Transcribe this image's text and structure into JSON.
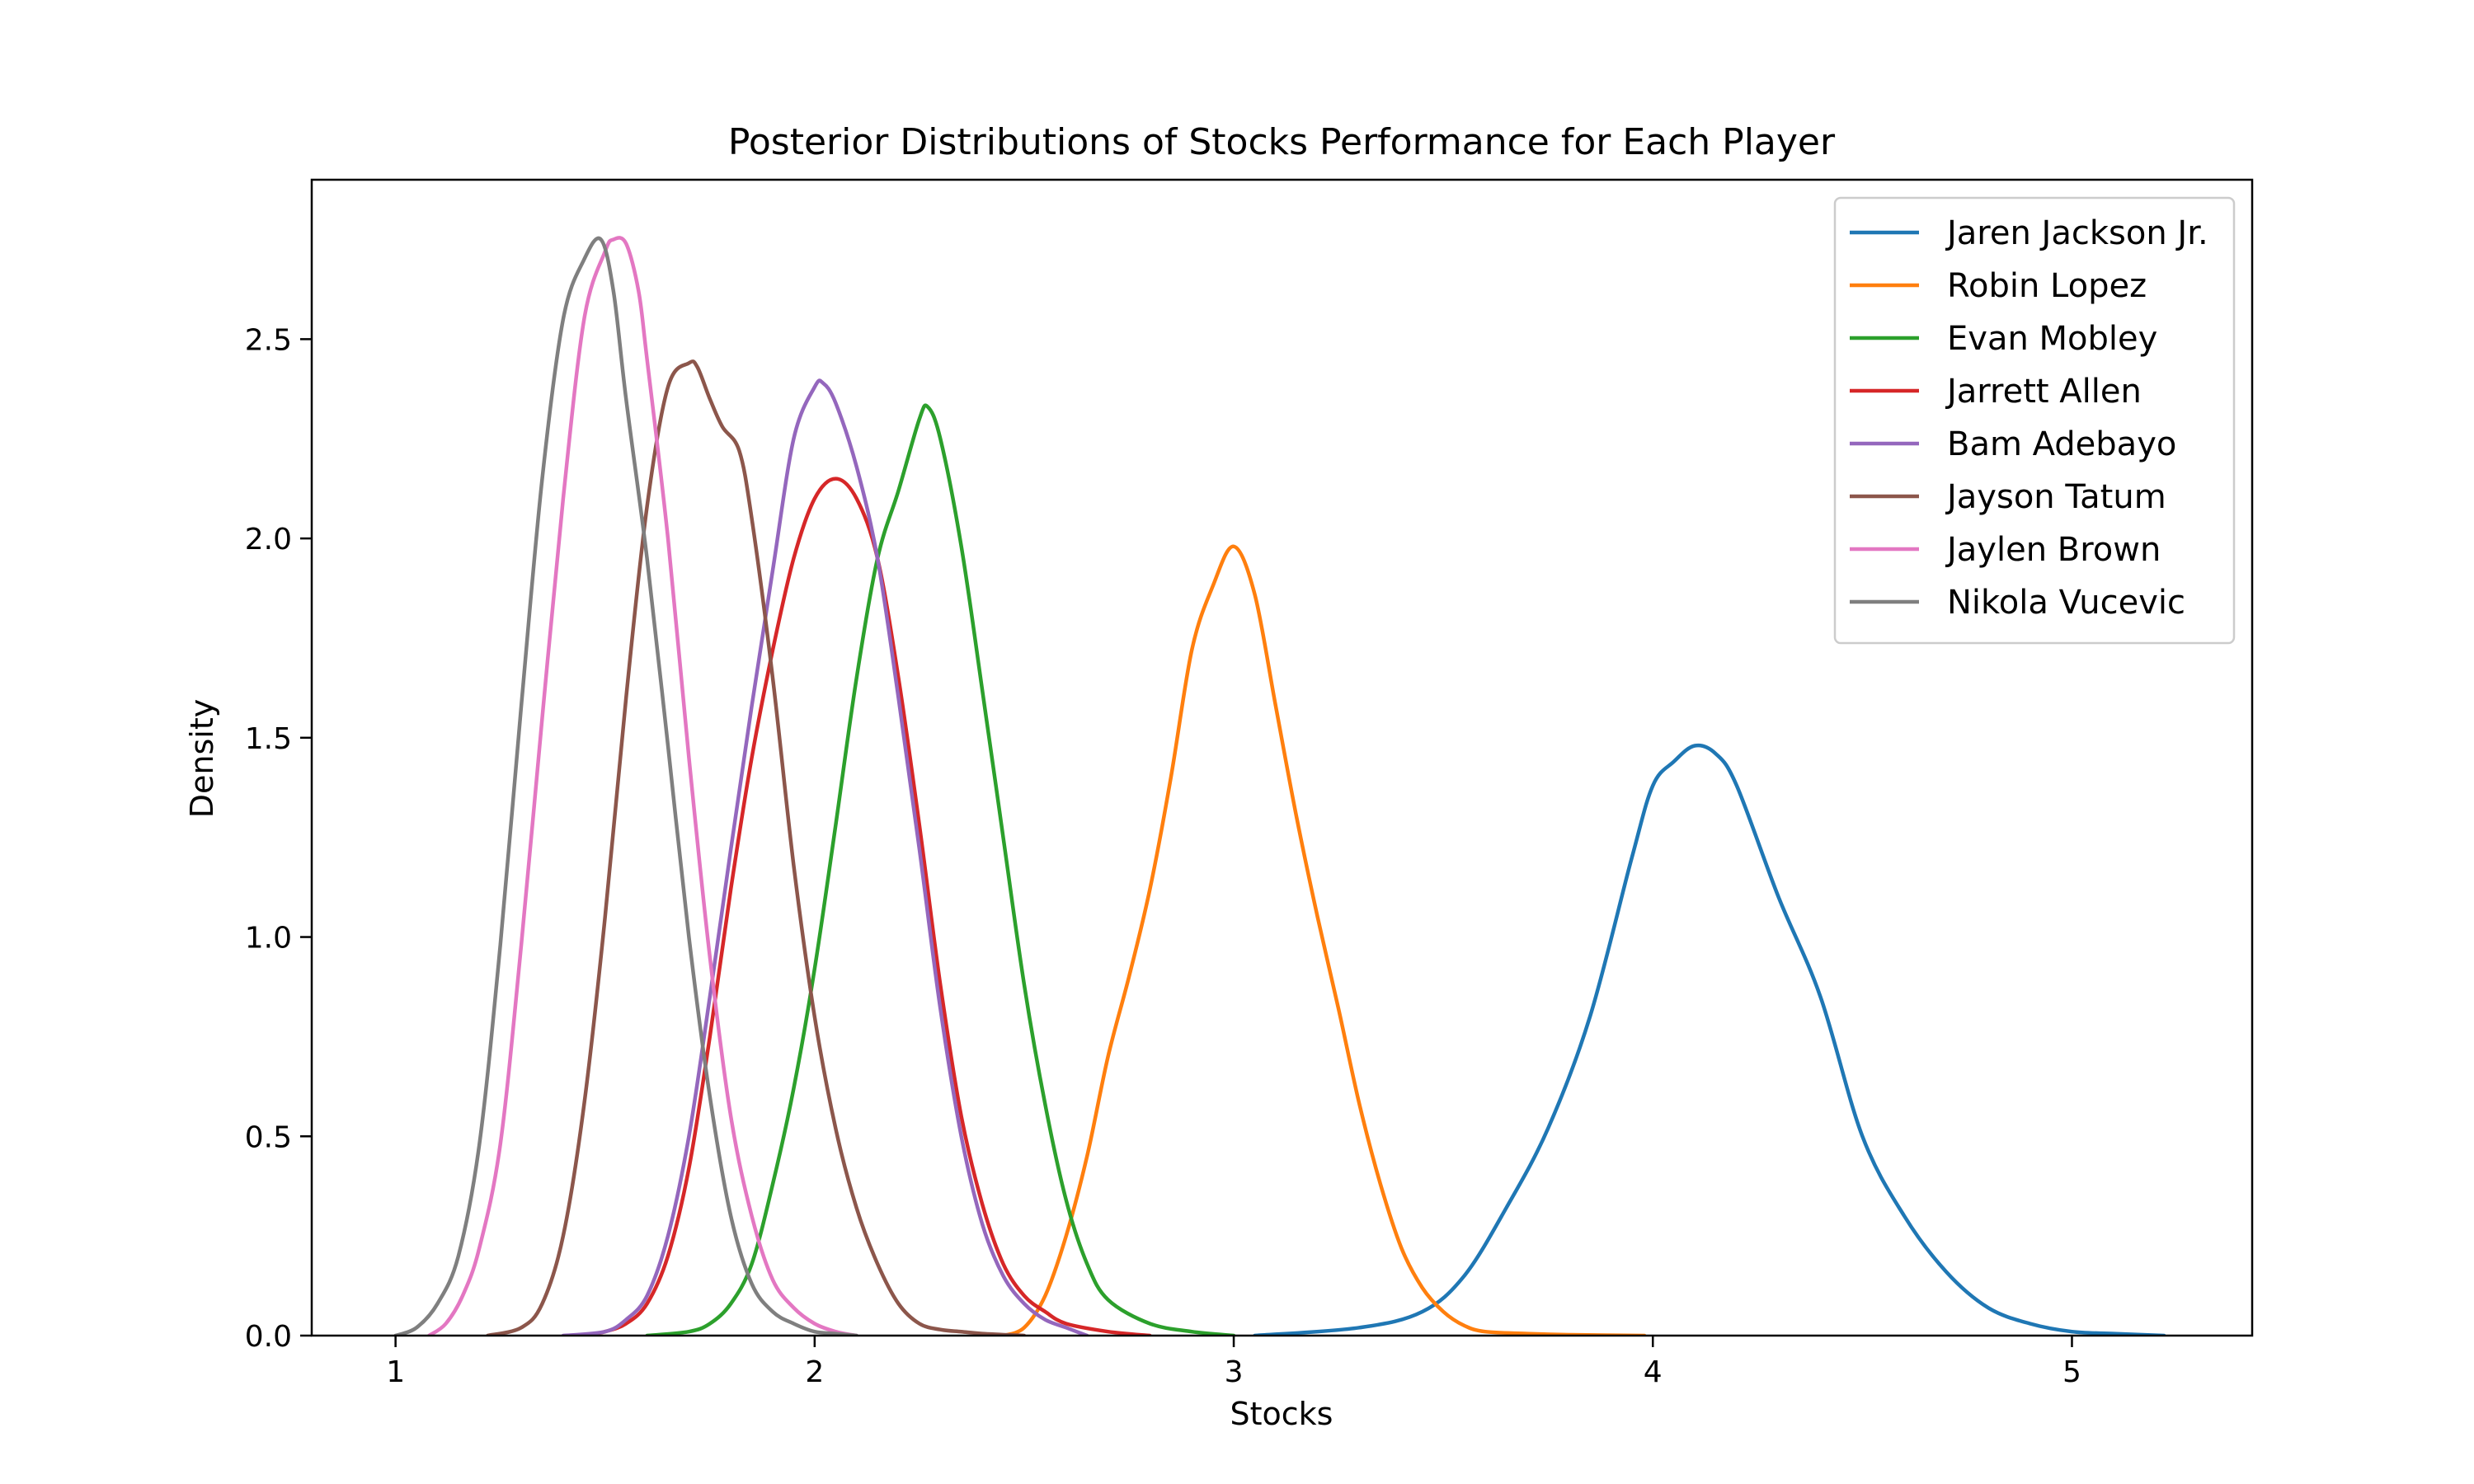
{
  "chart_data": {
    "type": "line",
    "title": "Posterior Distributions of Stocks Performance for Each Player",
    "xlabel": "Stocks",
    "ylabel": "Density",
    "xlim": [
      0.8,
      5.43
    ],
    "ylim": [
      0,
      2.9
    ],
    "xticks": [
      1,
      2,
      3,
      4,
      5
    ],
    "yticks": [
      0.0,
      0.5,
      1.0,
      1.5,
      2.0,
      2.5
    ],
    "xtick_labels": [
      "1",
      "2",
      "3",
      "4",
      "5"
    ],
    "ytick_labels": [
      "0.0",
      "0.5",
      "1.0",
      "1.5",
      "2.0",
      "2.5"
    ],
    "grid": false,
    "legend_position": "top-right",
    "series": [
      {
        "name": "Jaren Jackson Jr.",
        "color": "#1f77b4",
        "x": [
          3.05,
          3.3,
          3.45,
          3.55,
          3.65,
          3.75,
          3.85,
          3.95,
          4.0,
          4.05,
          4.1,
          4.15,
          4.2,
          4.3,
          4.4,
          4.5,
          4.6,
          4.7,
          4.8,
          4.9,
          5.0,
          5.1,
          5.22
        ],
        "y": [
          0.0,
          0.02,
          0.06,
          0.15,
          0.32,
          0.52,
          0.8,
          1.2,
          1.38,
          1.44,
          1.48,
          1.46,
          1.38,
          1.1,
          0.85,
          0.5,
          0.3,
          0.16,
          0.07,
          0.03,
          0.01,
          0.005,
          0.0
        ]
      },
      {
        "name": "Robin Lopez",
        "color": "#ff7f0e",
        "x": [
          2.45,
          2.5,
          2.55,
          2.6,
          2.65,
          2.7,
          2.75,
          2.8,
          2.85,
          2.9,
          2.95,
          3.0,
          3.05,
          3.1,
          3.15,
          3.2,
          3.25,
          3.3,
          3.35,
          3.4,
          3.45,
          3.5,
          3.55,
          3.6,
          3.7,
          3.8,
          3.98
        ],
        "y": [
          0.0,
          0.02,
          0.1,
          0.25,
          0.45,
          0.7,
          0.9,
          1.12,
          1.4,
          1.72,
          1.88,
          1.98,
          1.86,
          1.58,
          1.3,
          1.05,
          0.82,
          0.58,
          0.38,
          0.22,
          0.12,
          0.06,
          0.025,
          0.01,
          0.005,
          0.002,
          0.0
        ]
      },
      {
        "name": "Evan Mobley",
        "color": "#2ca02c",
        "x": [
          1.6,
          1.7,
          1.75,
          1.8,
          1.85,
          1.9,
          1.95,
          2.0,
          2.05,
          2.1,
          2.15,
          2.2,
          2.25,
          2.27,
          2.3,
          2.35,
          2.4,
          2.45,
          2.5,
          2.55,
          2.6,
          2.65,
          2.7,
          2.8,
          2.9,
          3.0
        ],
        "y": [
          0.0,
          0.01,
          0.03,
          0.08,
          0.18,
          0.38,
          0.62,
          0.92,
          1.28,
          1.65,
          1.95,
          2.12,
          2.3,
          2.33,
          2.25,
          1.98,
          1.62,
          1.25,
          0.88,
          0.58,
          0.34,
          0.18,
          0.09,
          0.03,
          0.01,
          0.0
        ]
      },
      {
        "name": "Jarrett Allen",
        "color": "#d62728",
        "x": [
          1.45,
          1.5,
          1.55,
          1.6,
          1.65,
          1.7,
          1.75,
          1.8,
          1.85,
          1.9,
          1.95,
          2.0,
          2.05,
          2.1,
          2.15,
          2.2,
          2.25,
          2.3,
          2.35,
          2.4,
          2.45,
          2.5,
          2.55,
          2.6,
          2.7,
          2.8
        ],
        "y": [
          0.0,
          0.01,
          0.03,
          0.08,
          0.2,
          0.42,
          0.75,
          1.12,
          1.45,
          1.72,
          1.95,
          2.1,
          2.15,
          2.1,
          1.95,
          1.65,
          1.28,
          0.88,
          0.55,
          0.33,
          0.18,
          0.1,
          0.06,
          0.03,
          0.01,
          0.0
        ]
      },
      {
        "name": "Bam Adebayo",
        "color": "#9467bd",
        "x": [
          1.4,
          1.5,
          1.55,
          1.6,
          1.65,
          1.7,
          1.75,
          1.8,
          1.85,
          1.9,
          1.95,
          2.0,
          2.02,
          2.05,
          2.1,
          2.15,
          2.2,
          2.25,
          2.3,
          2.35,
          2.4,
          2.45,
          2.5,
          2.55,
          2.6,
          2.65
        ],
        "y": [
          0.0,
          0.01,
          0.04,
          0.1,
          0.25,
          0.5,
          0.85,
          1.22,
          1.58,
          1.92,
          2.25,
          2.38,
          2.39,
          2.34,
          2.18,
          1.95,
          1.6,
          1.22,
          0.82,
          0.5,
          0.28,
          0.15,
          0.08,
          0.04,
          0.02,
          0.0
        ]
      },
      {
        "name": "Jayson Tatum",
        "color": "#8c564b",
        "x": [
          1.22,
          1.3,
          1.35,
          1.4,
          1.45,
          1.5,
          1.55,
          1.6,
          1.65,
          1.7,
          1.72,
          1.75,
          1.78,
          1.82,
          1.85,
          1.9,
          1.95,
          2.0,
          2.05,
          2.1,
          2.15,
          2.2,
          2.25,
          2.3,
          2.35,
          2.4,
          2.5
        ],
        "y": [
          0.0,
          0.02,
          0.08,
          0.25,
          0.58,
          1.05,
          1.6,
          2.08,
          2.38,
          2.44,
          2.43,
          2.35,
          2.28,
          2.22,
          2.05,
          1.65,
          1.18,
          0.8,
          0.52,
          0.32,
          0.18,
          0.08,
          0.03,
          0.015,
          0.01,
          0.005,
          0.0
        ]
      },
      {
        "name": "Jaylen Brown",
        "color": "#e377c2",
        "x": [
          1.08,
          1.12,
          1.16,
          1.2,
          1.25,
          1.3,
          1.35,
          1.4,
          1.45,
          1.5,
          1.52,
          1.55,
          1.58,
          1.6,
          1.65,
          1.7,
          1.75,
          1.8,
          1.85,
          1.9,
          1.95,
          2.0,
          2.05,
          2.1
        ],
        "y": [
          0.0,
          0.03,
          0.1,
          0.22,
          0.48,
          0.98,
          1.55,
          2.1,
          2.55,
          2.72,
          2.75,
          2.74,
          2.62,
          2.45,
          2.0,
          1.45,
          0.95,
          0.55,
          0.3,
          0.14,
          0.07,
          0.03,
          0.01,
          0.0
        ]
      },
      {
        "name": "Nikola Vucevic",
        "color": "#7f7f7f",
        "x": [
          1.0,
          1.05,
          1.1,
          1.15,
          1.2,
          1.25,
          1.3,
          1.35,
          1.4,
          1.45,
          1.49,
          1.52,
          1.55,
          1.6,
          1.65,
          1.7,
          1.75,
          1.8,
          1.85,
          1.9,
          1.95,
          2.0,
          2.05,
          2.1
        ],
        "y": [
          0.0,
          0.02,
          0.08,
          0.2,
          0.48,
          0.98,
          1.58,
          2.15,
          2.55,
          2.7,
          2.75,
          2.62,
          2.35,
          1.95,
          1.48,
          1.0,
          0.6,
          0.3,
          0.13,
          0.06,
          0.03,
          0.01,
          0.005,
          0.0
        ]
      }
    ]
  }
}
